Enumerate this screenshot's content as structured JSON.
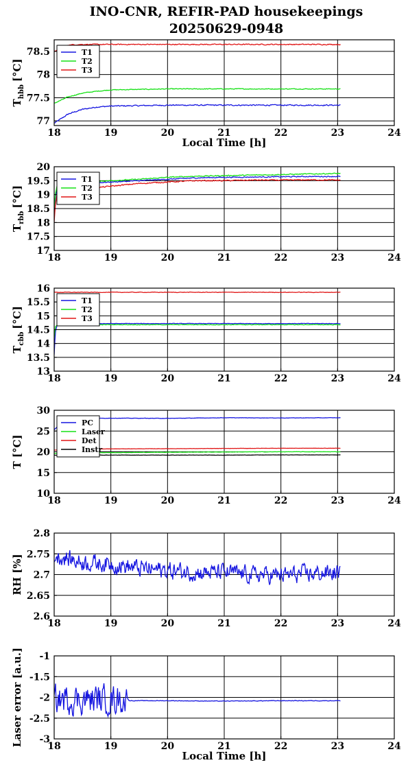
{
  "figure": {
    "title_line1": "INO-CNR, REFIR-PAD housekeepings",
    "title_line2": "20250629-0948"
  },
  "colors": {
    "blue": "#1515e0",
    "green": "#15e015",
    "red": "#e01515",
    "black": "#000000",
    "grid": "#000000"
  },
  "chart_data": [
    {
      "id": "hbb",
      "type": "line",
      "title": "",
      "ylabel": "T_hbb [°C]",
      "ylabel_main": "T",
      "ylabel_sub": "hbb",
      "ylabel_unit": "[°C]",
      "xlabel": "Local Time [h]",
      "xlim": [
        18,
        24
      ],
      "ylim": [
        76.9,
        78.75
      ],
      "xticks": [
        18,
        19,
        20,
        21,
        22,
        23,
        24
      ],
      "yticks": [
        77,
        77.5,
        78,
        78.5
      ],
      "ytick_labels": [
        "77",
        "77.5",
        "78",
        "78.5"
      ],
      "grid": true,
      "legend_position": "top-left",
      "x": [
        18.0,
        18.25,
        18.5,
        18.75,
        19.0,
        19.5,
        20.0,
        20.5,
        21.0,
        21.5,
        22.0,
        22.5,
        23.05
      ],
      "series": [
        {
          "name": "T1",
          "color": "blue",
          "values": [
            76.95,
            77.15,
            77.25,
            77.3,
            77.32,
            77.33,
            77.34,
            77.34,
            77.34,
            77.34,
            77.34,
            77.34,
            77.34
          ],
          "noise": 0.018
        },
        {
          "name": "T2",
          "color": "green",
          "values": [
            77.38,
            77.52,
            77.6,
            77.64,
            77.67,
            77.68,
            77.69,
            77.69,
            77.69,
            77.69,
            77.69,
            77.69,
            77.69
          ],
          "noise": 0.012
        },
        {
          "name": "T3",
          "color": "red",
          "values": [
            78.5,
            78.64,
            78.65,
            78.65,
            78.65,
            78.65,
            78.65,
            78.65,
            78.65,
            78.65,
            78.65,
            78.65,
            78.65
          ],
          "noise": 0.015
        }
      ]
    },
    {
      "id": "rbb",
      "type": "line",
      "title": "",
      "ylabel": "T_rbb [°C]",
      "ylabel_main": "T",
      "ylabel_sub": "rbb",
      "ylabel_unit": "[°C]",
      "xlabel": "",
      "xlim": [
        18,
        24
      ],
      "ylim": [
        17,
        20
      ],
      "xticks": [
        18,
        19,
        20,
        21,
        22,
        23,
        24
      ],
      "yticks": [
        17,
        17.5,
        18,
        18.5,
        19,
        19.5,
        20
      ],
      "ytick_labels": [
        "17",
        "17.5",
        "18",
        "18.5",
        "19",
        "19.5",
        "20"
      ],
      "grid": true,
      "legend_position": "top-left",
      "x": [
        18.0,
        18.02,
        18.05,
        18.1,
        18.25,
        18.5,
        19.0,
        19.5,
        20.0,
        20.5,
        21.0,
        21.5,
        22.0,
        22.5,
        23.05
      ],
      "series": [
        {
          "name": "T1",
          "color": "blue",
          "values": [
            18.3,
            18.9,
            19.2,
            19.3,
            19.35,
            19.4,
            19.45,
            19.5,
            19.55,
            19.6,
            19.62,
            19.63,
            19.64,
            19.65,
            19.65
          ],
          "noise": 0.025
        },
        {
          "name": "T2",
          "color": "green",
          "values": [
            18.5,
            19.0,
            19.3,
            19.38,
            19.42,
            19.46,
            19.5,
            19.55,
            19.62,
            19.66,
            19.68,
            19.7,
            19.72,
            19.74,
            19.76
          ],
          "noise": 0.025
        },
        {
          "name": "T3",
          "color": "red",
          "values": [
            18.0,
            18.6,
            19.0,
            19.1,
            19.15,
            19.2,
            19.3,
            19.4,
            19.45,
            19.5,
            19.5,
            19.52,
            19.52,
            19.53,
            19.52
          ],
          "noise": 0.03
        }
      ]
    },
    {
      "id": "cbb",
      "type": "line",
      "title": "",
      "ylabel": "T_cbb [°C]",
      "ylabel_main": "T",
      "ylabel_sub": "cbb",
      "ylabel_unit": "[°C]",
      "xlabel": "",
      "xlim": [
        18,
        24
      ],
      "ylim": [
        13,
        16
      ],
      "xticks": [
        18,
        19,
        20,
        21,
        22,
        23,
        24
      ],
      "yticks": [
        13,
        13.5,
        14,
        14.5,
        15,
        15.5,
        16
      ],
      "ytick_labels": [
        "13",
        "13.5",
        "14",
        "14.5",
        "15",
        "15.5",
        "16"
      ],
      "grid": true,
      "legend_position": "top-left",
      "x": [
        18.0,
        18.02,
        18.05,
        18.1,
        18.25,
        18.5,
        19.0,
        20.0,
        21.0,
        22.0,
        23.05
      ],
      "series": [
        {
          "name": "T1",
          "color": "blue",
          "values": [
            13.6,
            14.4,
            14.65,
            14.7,
            14.72,
            14.72,
            14.72,
            14.72,
            14.72,
            14.72,
            14.72
          ],
          "noise": 0.012
        },
        {
          "name": "T2",
          "color": "green",
          "values": [
            14.2,
            14.6,
            14.66,
            14.68,
            14.68,
            14.68,
            14.68,
            14.68,
            14.68,
            14.68,
            14.68
          ],
          "noise": 0.015
        },
        {
          "name": "T3",
          "color": "red",
          "values": [
            15.85,
            15.85,
            15.85,
            15.85,
            15.85,
            15.85,
            15.85,
            15.85,
            15.85,
            15.85,
            15.85
          ],
          "noise": 0.014
        }
      ]
    },
    {
      "id": "temps",
      "type": "line",
      "title": "",
      "ylabel": "T [°C]",
      "ylabel_main": "T [°C]",
      "ylabel_sub": "",
      "ylabel_unit": "",
      "xlabel": "",
      "xlim": [
        18,
        24
      ],
      "ylim": [
        10,
        30
      ],
      "xticks": [
        18,
        19,
        20,
        21,
        22,
        23,
        24
      ],
      "yticks": [
        10,
        15,
        20,
        25,
        30
      ],
      "ytick_labels": [
        "10",
        "15",
        "20",
        "25",
        "30"
      ],
      "grid": true,
      "legend_position": "top-left",
      "x": [
        18.0,
        18.1,
        18.25,
        18.5,
        19.0,
        20.0,
        21.0,
        22.0,
        23.05
      ],
      "series": [
        {
          "name": "PC",
          "color": "blue",
          "values": [
            25.3,
            26.6,
            27.5,
            28.0,
            28.1,
            28.05,
            28.2,
            28.15,
            28.2
          ],
          "noise": 0.06
        },
        {
          "name": "Laser",
          "color": "green",
          "values": [
            19.6,
            19.6,
            19.7,
            19.8,
            19.8,
            19.9,
            19.95,
            20.0,
            20.0
          ],
          "noise": 0.06
        },
        {
          "name": "Det",
          "color": "red",
          "values": [
            20.4,
            20.45,
            20.5,
            20.6,
            20.7,
            20.75,
            20.8,
            20.85,
            20.85
          ],
          "noise": 0.04
        },
        {
          "name": "Instr",
          "color": "black",
          "values": [
            19.2,
            19.2,
            19.2,
            19.2,
            19.2,
            19.2,
            19.2,
            19.25,
            19.25
          ],
          "noise": 0.04
        }
      ]
    },
    {
      "id": "rh",
      "type": "line",
      "title": "",
      "ylabel": "RH [%]",
      "ylabel_main": "RH [%]",
      "ylabel_sub": "",
      "ylabel_unit": "",
      "xlabel": "",
      "xlim": [
        18,
        24
      ],
      "ylim": [
        2.6,
        2.8
      ],
      "xticks": [
        18,
        19,
        20,
        21,
        22,
        23,
        24
      ],
      "yticks": [
        2.6,
        2.65,
        2.7,
        2.75,
        2.8
      ],
      "ytick_labels": [
        "2.6",
        "2.65",
        "2.7",
        "2.75",
        "2.8"
      ],
      "grid": true,
      "legend_position": "none",
      "x": [
        18.0,
        18.5,
        19.0,
        19.5,
        20.0,
        20.5,
        21.0,
        21.5,
        22.0,
        22.5,
        23.05
      ],
      "series": [
        {
          "name": "",
          "color": "blue",
          "values": [
            2.745,
            2.73,
            2.725,
            2.715,
            2.71,
            2.705,
            2.705,
            2.7,
            2.698,
            2.702,
            2.705
          ],
          "noise": 0.03
        }
      ]
    },
    {
      "id": "laser",
      "type": "line",
      "title": "",
      "ylabel": "Laser error [a.u.]",
      "ylabel_main": "Laser error [a.u.]",
      "ylabel_sub": "",
      "ylabel_unit": "",
      "xlabel": "Local Time [h]",
      "xlim": [
        18,
        24
      ],
      "ylim": [
        -3,
        -1
      ],
      "xticks": [
        18,
        19,
        20,
        21,
        22,
        23,
        24
      ],
      "yticks": [
        -3,
        -2.5,
        -2,
        -1.5,
        -1
      ],
      "ytick_labels": [
        "-3",
        "-2.5",
        "-2",
        "-1.5",
        "-1"
      ],
      "grid": true,
      "legend_position": "none",
      "x": [
        18.0,
        18.5,
        19.0,
        19.2,
        19.28,
        19.6,
        20.0,
        21.0,
        22.0,
        23.05
      ],
      "series": [
        {
          "name": "",
          "color": "blue",
          "values": [
            -2.05,
            -2.05,
            -2.05,
            -2.05,
            -2.08,
            -2.08,
            -2.08,
            -2.09,
            -2.08,
            -2.08
          ],
          "noise_segments": [
            [
              18.0,
              19.28,
              0.5
            ],
            [
              19.28,
              23.05,
              0.01
            ]
          ]
        }
      ]
    }
  ]
}
